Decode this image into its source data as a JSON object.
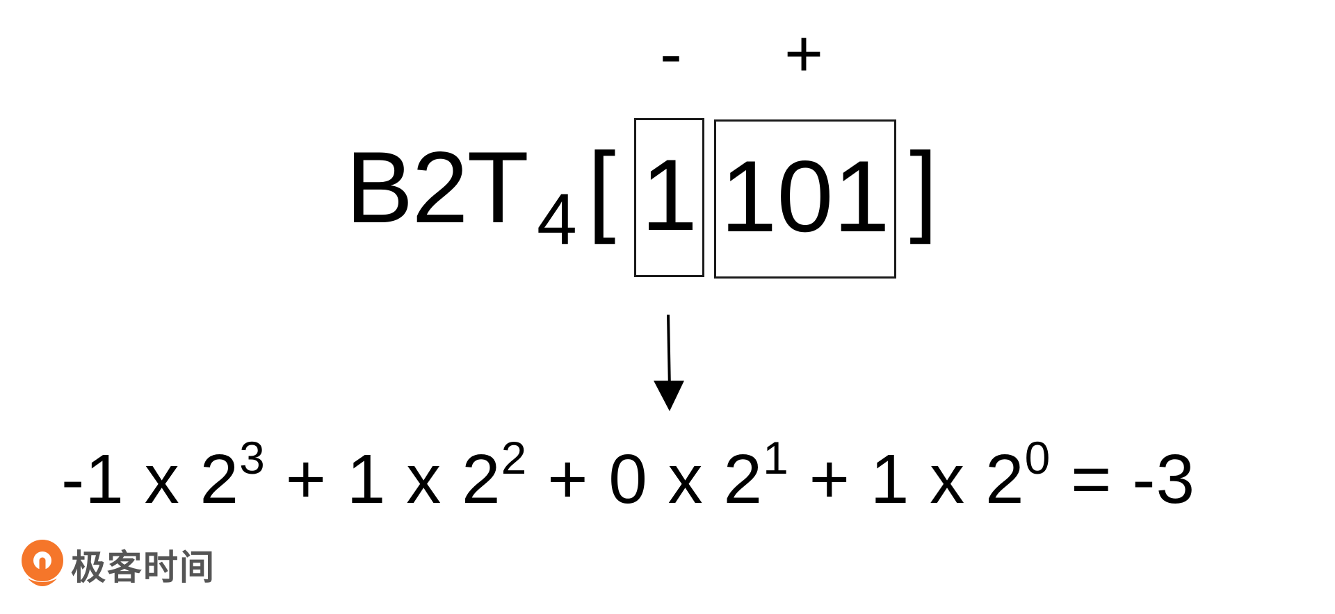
{
  "signs": {
    "negative": "-",
    "positive": "+"
  },
  "expression": {
    "function_name": "B2T",
    "subscript": "4",
    "open_bracket": "[",
    "close_bracket": "]",
    "sign_bit": "1",
    "value_bits": "101"
  },
  "formula": {
    "terms": [
      {
        "prefix": "-1 x 2",
        "exponent": "3"
      },
      {
        "prefix": " + 1 x 2",
        "exponent": "2"
      },
      {
        "prefix": " + 0 x 2",
        "exponent": "1"
      },
      {
        "prefix": " + 1 x 2",
        "exponent": "0"
      }
    ],
    "result": " = -3"
  },
  "logo": {
    "text": "极客时间",
    "icon": "geektime-logo-icon",
    "accent_color": "#f5762a"
  }
}
